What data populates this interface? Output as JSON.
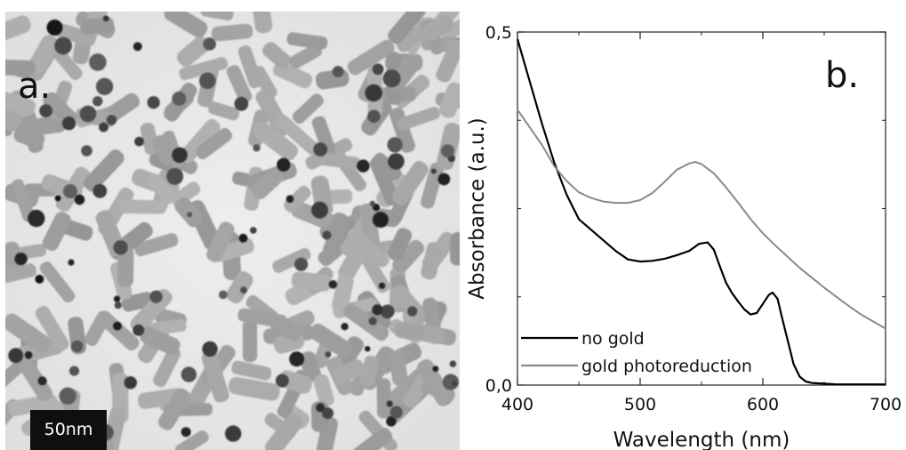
{
  "tem_panel": {
    "panel_label": "a.",
    "scale_bar_label": "50nm"
  },
  "chart_data": {
    "type": "line",
    "panel_label": "b.",
    "xlabel": "Wavelength (nm)",
    "ylabel": "Absorbance (a.u.)",
    "xlim": [
      400,
      700
    ],
    "ylim": [
      0,
      0.5
    ],
    "x_ticks": [
      "400",
      "500",
      "600",
      "700"
    ],
    "y_ticks": [
      "0,0",
      "0,5"
    ],
    "legend_position": "bottom-left",
    "series": [
      {
        "name": "no gold",
        "color": "#000000",
        "x": [
          400,
          410,
          420,
          430,
          440,
          450,
          460,
          470,
          480,
          490,
          500,
          510,
          520,
          530,
          540,
          548,
          555,
          560,
          565,
          570,
          575,
          580,
          585,
          590,
          595,
          600,
          605,
          608,
          612,
          615,
          620,
          625,
          630,
          635,
          640,
          650,
          660,
          680,
          700
        ],
        "y": [
          0.49,
          0.43,
          0.37,
          0.315,
          0.27,
          0.235,
          0.22,
          0.205,
          0.19,
          0.178,
          0.175,
          0.176,
          0.179,
          0.184,
          0.19,
          0.2,
          0.202,
          0.192,
          0.168,
          0.145,
          0.13,
          0.118,
          0.107,
          0.1,
          0.102,
          0.115,
          0.128,
          0.131,
          0.122,
          0.1,
          0.065,
          0.03,
          0.012,
          0.005,
          0.003,
          0.002,
          0.001,
          0.001,
          0.001
        ]
      },
      {
        "name": "gold photoreduction",
        "color": "#8a8a8a",
        "x": [
          400,
          410,
          420,
          430,
          440,
          450,
          460,
          470,
          480,
          490,
          500,
          510,
          520,
          530,
          540,
          545,
          550,
          560,
          570,
          580,
          590,
          600,
          610,
          620,
          630,
          640,
          650,
          660,
          670,
          680,
          690,
          700
        ],
        "y": [
          0.39,
          0.365,
          0.34,
          0.31,
          0.289,
          0.273,
          0.265,
          0.26,
          0.258,
          0.258,
          0.262,
          0.272,
          0.288,
          0.305,
          0.314,
          0.316,
          0.313,
          0.3,
          0.28,
          0.258,
          0.235,
          0.215,
          0.198,
          0.182,
          0.166,
          0.152,
          0.138,
          0.125,
          0.112,
          0.1,
          0.09,
          0.08
        ]
      }
    ]
  }
}
